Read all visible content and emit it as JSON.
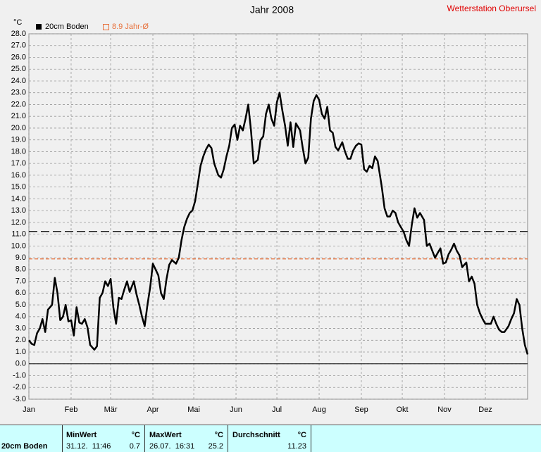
{
  "chart_data": {
    "type": "line",
    "title": "Jahr 2008",
    "annotation": "Wetterstation Oberursel",
    "y_unit": "°C",
    "xlim": [
      0,
      366
    ],
    "xticks": [
      {
        "value": 0,
        "label": "Jan"
      },
      {
        "value": 31,
        "label": "Feb"
      },
      {
        "value": 60,
        "label": "Mär"
      },
      {
        "value": 91,
        "label": "Apr"
      },
      {
        "value": 121,
        "label": "Mai"
      },
      {
        "value": 152,
        "label": "Jun"
      },
      {
        "value": 182,
        "label": "Jul"
      },
      {
        "value": 213,
        "label": "Aug"
      },
      {
        "value": 244,
        "label": "Sep"
      },
      {
        "value": 274,
        "label": "Okt"
      },
      {
        "value": 305,
        "label": "Nov"
      },
      {
        "value": 335,
        "label": "Dez"
      }
    ],
    "ylim": [
      -3,
      28
    ],
    "yticks": [
      {
        "value": 28,
        "label": "28.0"
      },
      {
        "value": 27,
        "label": "27.0"
      },
      {
        "value": 26,
        "label": "26.0"
      },
      {
        "value": 25,
        "label": "25.0"
      },
      {
        "value": 24,
        "label": "24.0"
      },
      {
        "value": 23,
        "label": "23.0"
      },
      {
        "value": 22,
        "label": "22.0"
      },
      {
        "value": 21,
        "label": "21.0"
      },
      {
        "value": 20,
        "label": "20.0"
      },
      {
        "value": 19,
        "label": "19.0"
      },
      {
        "value": 18,
        "label": "18.0"
      },
      {
        "value": 17,
        "label": "17.0"
      },
      {
        "value": 16,
        "label": "16.0"
      },
      {
        "value": 15,
        "label": "15.0"
      },
      {
        "value": 14,
        "label": "14.0"
      },
      {
        "value": 13,
        "label": "13.0"
      },
      {
        "value": 12,
        "label": "12.0"
      },
      {
        "value": 11,
        "label": "11.0"
      },
      {
        "value": 10,
        "label": "10.0"
      },
      {
        "value": 9,
        "label": "9.0"
      },
      {
        "value": 8,
        "label": "8.0"
      },
      {
        "value": 7,
        "label": "7.0"
      },
      {
        "value": 6,
        "label": "6.0"
      },
      {
        "value": 5,
        "label": "5.0"
      },
      {
        "value": 4,
        "label": "4.0"
      },
      {
        "value": 3,
        "label": "3.0"
      },
      {
        "value": 2,
        "label": "2.0"
      },
      {
        "value": 1,
        "label": "1.0"
      },
      {
        "value": 0,
        "label": "0.0"
      },
      {
        "value": -1,
        "label": "-1.0"
      },
      {
        "value": -2,
        "label": "-2.0"
      },
      {
        "value": -3,
        "label": "-3.0"
      }
    ],
    "grid": true,
    "x": [
      0,
      2,
      4,
      6,
      8,
      10,
      12,
      14,
      17,
      19,
      21,
      23,
      25,
      27,
      29,
      31,
      33,
      35,
      37,
      39,
      41,
      43,
      45,
      48,
      50,
      52,
      54,
      56,
      58,
      60,
      62,
      64,
      66,
      68,
      70,
      72,
      74,
      77,
      79,
      81,
      83,
      85,
      87,
      89,
      91,
      93,
      95,
      97,
      99,
      101,
      103,
      105,
      108,
      110,
      112,
      114,
      116,
      118,
      120,
      122,
      124,
      126,
      128,
      130,
      132,
      134,
      136,
      139,
      141,
      143,
      145,
      147,
      149,
      151,
      153,
      155,
      157,
      159,
      161,
      163,
      165,
      168,
      170,
      172,
      174,
      176,
      178,
      180,
      182,
      184,
      186,
      188,
      190,
      192,
      194,
      196,
      199,
      201,
      203,
      205,
      207,
      209,
      211,
      213,
      215,
      217,
      219,
      221,
      223,
      225,
      227,
      230,
      232,
      234,
      236,
      238,
      240,
      242,
      244,
      246,
      248,
      250,
      252,
      254,
      256,
      259,
      261,
      263,
      265,
      267,
      269,
      271,
      273,
      275,
      277,
      279,
      281,
      283,
      285,
      287,
      290,
      292,
      294,
      296,
      298,
      300,
      302,
      304,
      306,
      308,
      310,
      312,
      314,
      316,
      318,
      321,
      323,
      325,
      327,
      329,
      331,
      333,
      335,
      337,
      339,
      341,
      343,
      345,
      347,
      349,
      352,
      354,
      356,
      358,
      360,
      362,
      364,
      366
    ],
    "series": [
      {
        "name": "20cm Boden",
        "color": "#000000",
        "values": [
          2.0,
          1.7,
          1.6,
          2.6,
          3.0,
          3.8,
          2.7,
          4.6,
          5.0,
          7.3,
          6.0,
          3.7,
          4.0,
          5.0,
          3.6,
          3.7,
          2.4,
          4.8,
          3.5,
          3.4,
          3.8,
          3.1,
          1.6,
          1.2,
          1.5,
          5.6,
          6.0,
          7.0,
          6.6,
          7.2,
          4.8,
          3.4,
          5.6,
          5.5,
          6.3,
          7.0,
          6.1,
          7.0,
          5.9,
          5.0,
          4.0,
          3.2,
          5.0,
          6.5,
          8.5,
          8.0,
          7.5,
          6.0,
          5.5,
          7.2,
          8.4,
          8.8,
          8.5,
          9.0,
          10.5,
          11.6,
          12.3,
          12.8,
          13.0,
          13.8,
          15.3,
          16.8,
          17.6,
          18.2,
          18.6,
          18.3,
          17.0,
          16.0,
          15.8,
          16.5,
          17.6,
          18.5,
          20.0,
          20.3,
          19.0,
          20.2,
          19.8,
          20.8,
          22.0,
          19.8,
          17.0,
          17.3,
          19.0,
          19.3,
          21.2,
          22.0,
          20.8,
          20.2,
          22.2,
          23.0,
          21.5,
          20.2,
          18.5,
          20.5,
          18.4,
          20.4,
          19.8,
          18.3,
          17.0,
          17.5,
          20.8,
          22.3,
          22.8,
          22.4,
          21.2,
          20.8,
          21.8,
          19.8,
          19.6,
          18.4,
          18.1,
          18.8,
          18.0,
          17.4,
          17.4,
          18.1,
          18.5,
          18.7,
          18.6,
          16.5,
          16.3,
          16.8,
          16.6,
          17.6,
          17.2,
          15.0,
          13.2,
          12.5,
          12.5,
          13.0,
          12.8,
          12.0,
          11.6,
          11.2,
          10.5,
          10.0,
          11.8,
          13.2,
          12.4,
          12.8,
          12.2,
          10.0,
          10.2,
          9.6,
          9.0,
          9.4,
          9.8,
          8.5,
          8.6,
          9.3,
          9.7,
          10.2,
          9.6,
          9.2,
          8.2,
          8.6,
          7.0,
          7.4,
          6.8,
          5.0,
          4.3,
          3.8,
          3.4,
          3.4,
          3.4,
          4.0,
          3.4,
          2.9,
          2.7,
          2.7,
          3.2,
          3.8,
          4.3,
          5.5,
          5.0,
          3.0,
          1.6,
          0.8
        ]
      }
    ],
    "reference_line": {
      "label": "8.9 Jahr-Ø",
      "value": 8.9,
      "color": "#e8703a"
    }
  },
  "footer": {
    "station": "20cm Boden",
    "min": {
      "label": "MinWert",
      "unit": "°C",
      "time": "31.12.  11:46",
      "value": 0.7
    },
    "max": {
      "label": "MaxWert",
      "unit": "°C",
      "time": "26.07.  16:31",
      "value": 25.2
    },
    "average": {
      "label": "Durchschnitt",
      "unit": "°C",
      "value": 11.23
    }
  }
}
